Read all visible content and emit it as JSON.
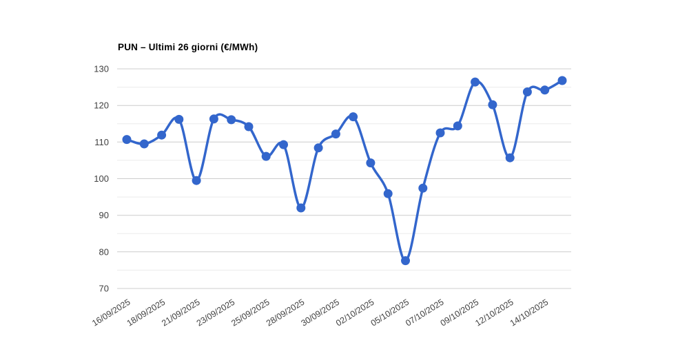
{
  "chart_data": {
    "type": "line",
    "title": "PUN – Ultimi 26 giorni (€/MWh)",
    "xlabel": "",
    "ylabel": "",
    "ylim": [
      70,
      130
    ],
    "y_major_step": 10,
    "y_minor_step": 5,
    "grid": true,
    "legend_position": "none",
    "curve": "smooth",
    "y_tick_labels": [
      "130",
      "120",
      "110",
      "100",
      "90",
      "80",
      "70"
    ],
    "x_tick_labels": [
      "16/09/2025",
      "18/09/2025",
      "21/09/2025",
      "23/09/2025",
      "25/09/2025",
      "28/09/2025",
      "30/09/2025",
      "02/10/2025",
      "05/10/2025",
      "07/10/2025",
      "09/10/2025",
      "12/10/2025",
      "14/10/2025"
    ],
    "x_tick_every_n_points": 2,
    "x_label_angle_deg": -32,
    "series": [
      {
        "name": "PUN",
        "color": "#3366cc",
        "values": [
          110.7,
          109.5,
          111.9,
          116.2,
          99.5,
          116.3,
          116.1,
          114.2,
          106.1,
          109.3,
          92.0,
          108.4,
          112.2,
          116.9,
          104.3,
          95.9,
          77.6,
          97.4,
          112.5,
          114.4,
          126.4,
          120.2,
          105.7,
          123.7,
          124.2,
          126.8
        ]
      }
    ],
    "colors": {
      "major_grid": "#cccccc",
      "minor_grid": "#ebebeb",
      "axis_label": "#404040",
      "title": "#000000",
      "background": "#ffffff"
    }
  }
}
